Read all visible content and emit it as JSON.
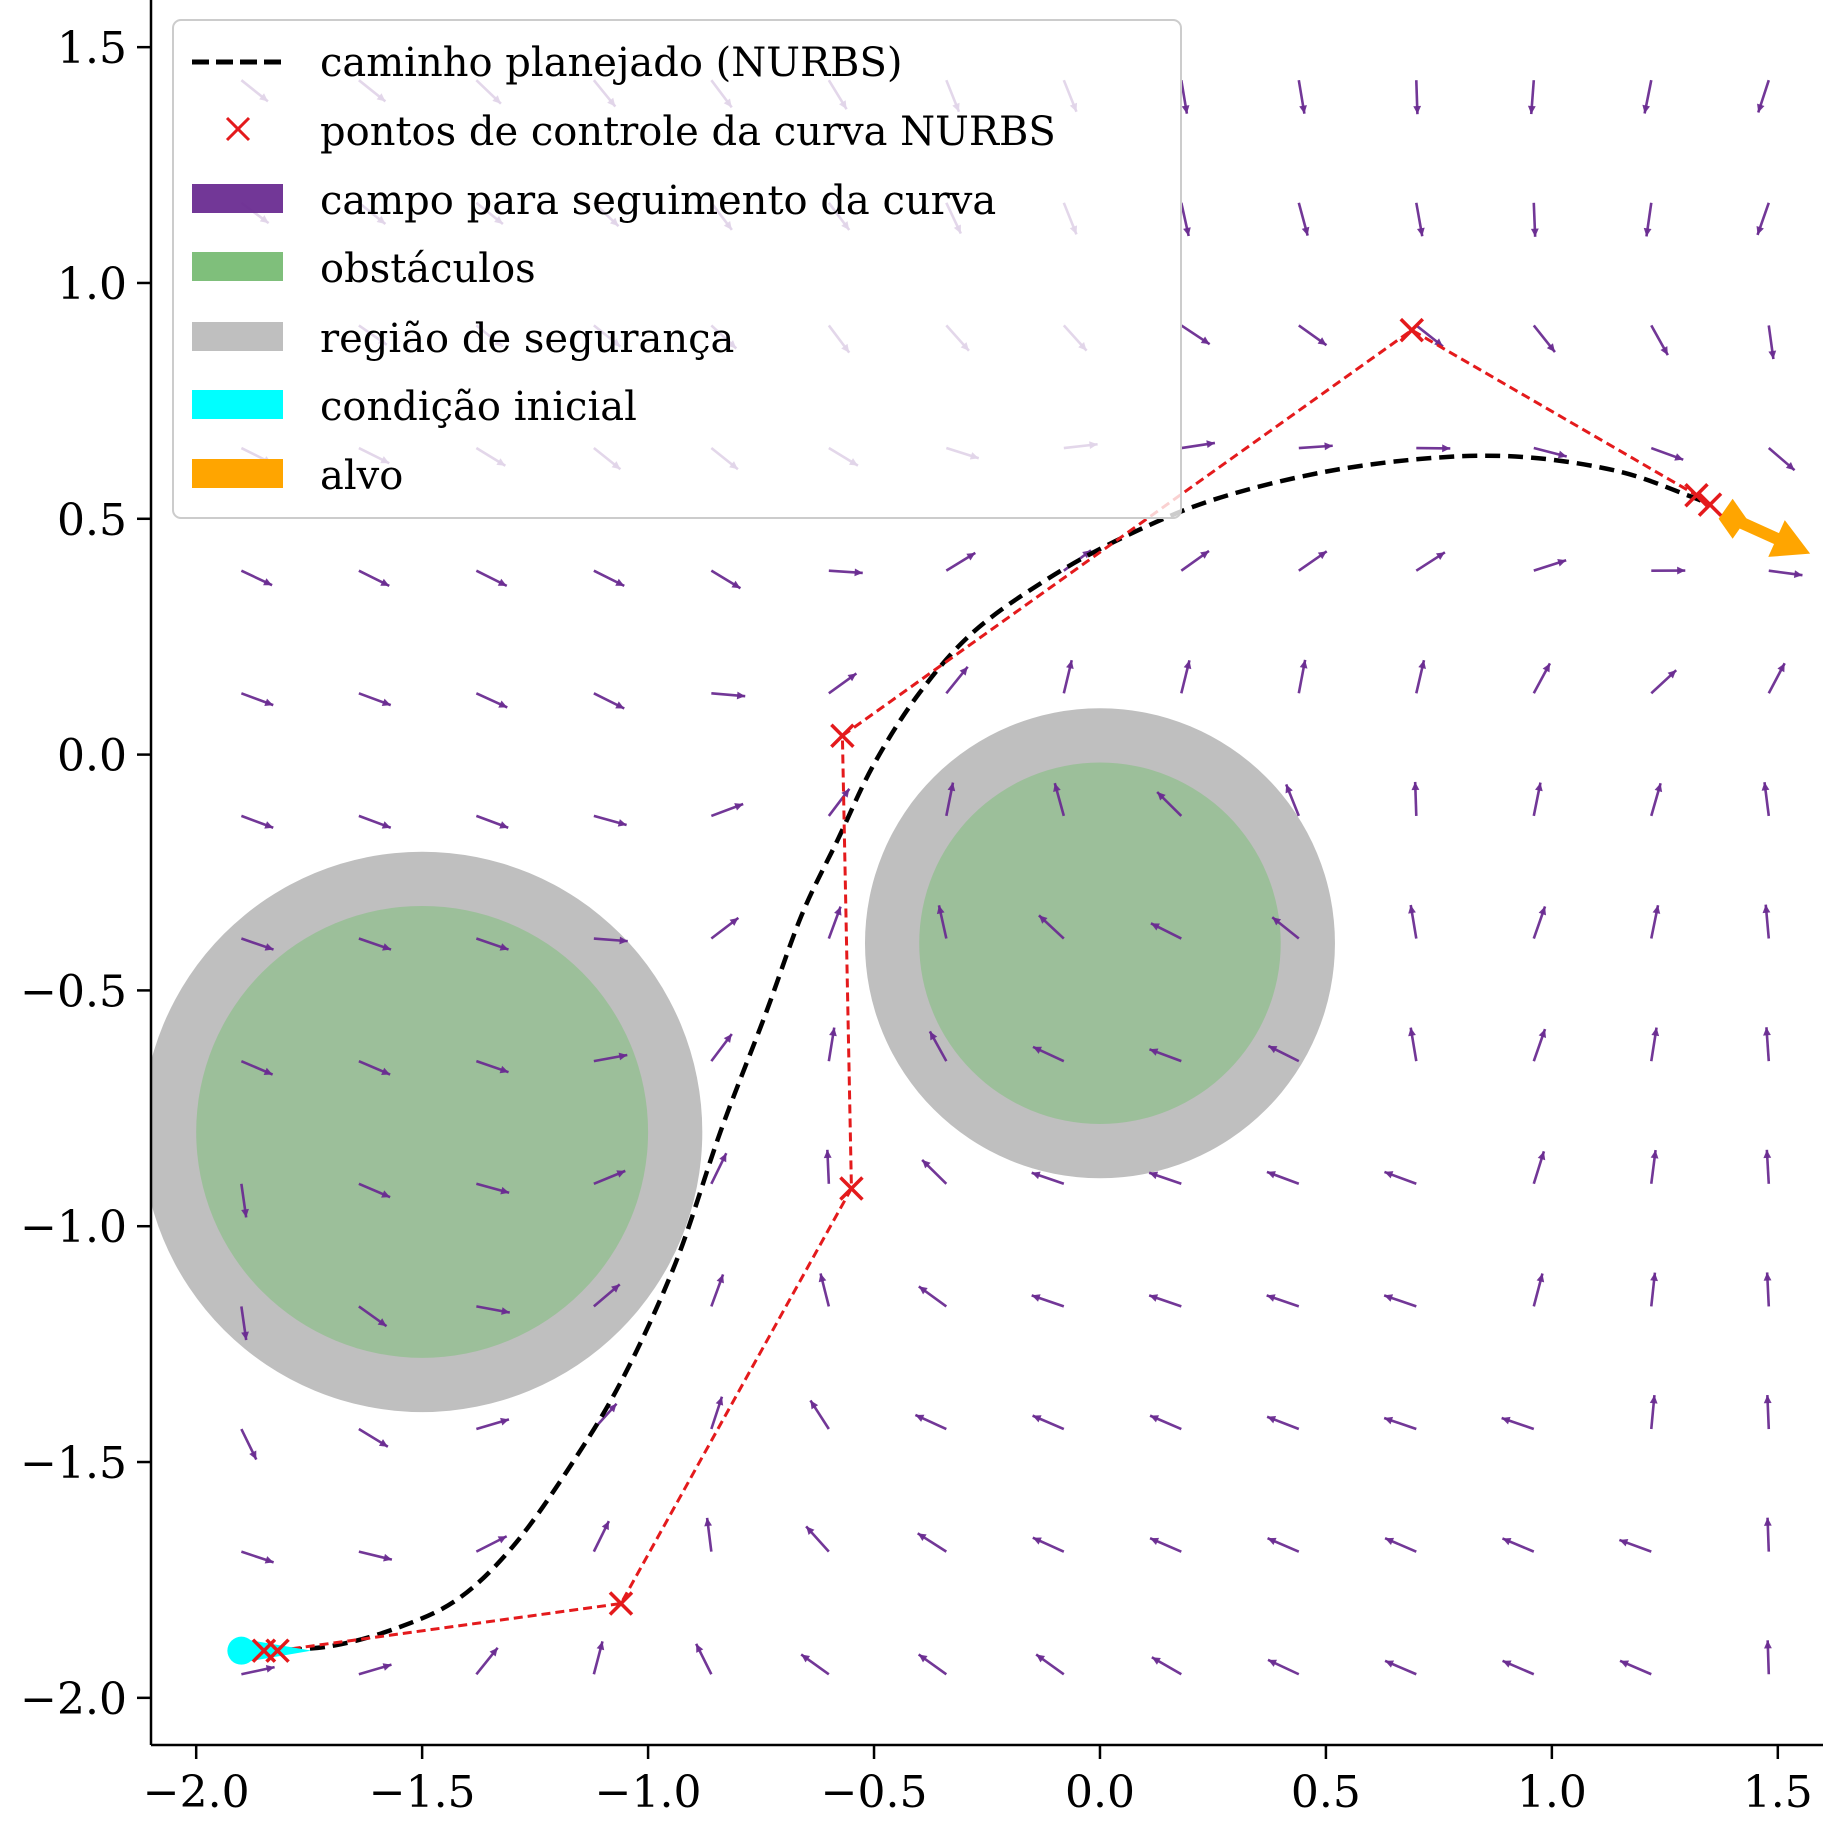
{
  "chart_data": {
    "type": "quiver",
    "title": "",
    "xlabel": "",
    "ylabel": "",
    "xlim": [
      -2.1,
      1.6
    ],
    "ylim": [
      -2.1,
      1.6
    ],
    "xticks": [
      -2.0,
      -1.5,
      -1.0,
      -0.5,
      0.0,
      0.5,
      1.0,
      1.5
    ],
    "yticks": [
      -2.0,
      -1.5,
      -1.0,
      -0.5,
      0.0,
      0.5,
      1.0,
      1.5
    ],
    "xtick_labels": [
      "−2.0",
      "−1.5",
      "−1.0",
      "−0.5",
      "0.0",
      "0.5",
      "1.0",
      "1.5"
    ],
    "ytick_labels": [
      "−2.0",
      "−1.5",
      "−1.0",
      "−0.5",
      "0.0",
      "0.5",
      "1.0",
      "1.5"
    ],
    "grid": false,
    "legend_position": "upper-left",
    "legend": [
      {
        "key": "path",
        "label": "caminho planejado (NURBS)"
      },
      {
        "key": "control",
        "label": "pontos de controle da curva NURBS"
      },
      {
        "key": "field",
        "label": "campo para seguimento da curva"
      },
      {
        "key": "obstacles",
        "label": "obstáculos"
      },
      {
        "key": "safety",
        "label": "região de segurança"
      },
      {
        "key": "initial",
        "label": "condição inicial"
      },
      {
        "key": "target",
        "label": "alvo"
      }
    ],
    "colors": {
      "path": "#000000",
      "control": "#e41a1c",
      "field": "#6a2c91",
      "obstacle": "#7fbf7b",
      "safety": "#bfbfbf",
      "initial": "#00ffff",
      "target": "#ffa500"
    },
    "control_points": [
      [
        -1.85,
        -1.9
      ],
      [
        -1.82,
        -1.9
      ],
      [
        -1.06,
        -1.8
      ],
      [
        -0.55,
        -0.92
      ],
      [
        -0.57,
        0.04
      ],
      [
        0.69,
        0.9
      ],
      [
        1.32,
        0.55
      ],
      [
        1.35,
        0.53
      ]
    ],
    "path_points": [
      [
        -1.85,
        -1.9
      ],
      [
        -1.7,
        -1.89
      ],
      [
        -1.55,
        -1.85
      ],
      [
        -1.42,
        -1.79
      ],
      [
        -1.3,
        -1.68
      ],
      [
        -1.18,
        -1.52
      ],
      [
        -1.06,
        -1.33
      ],
      [
        -0.94,
        -1.08
      ],
      [
        -0.84,
        -0.8
      ],
      [
        -0.74,
        -0.55
      ],
      [
        -0.66,
        -0.34
      ],
      [
        -0.58,
        -0.18
      ],
      [
        -0.5,
        -0.02
      ],
      [
        -0.4,
        0.13
      ],
      [
        -0.28,
        0.26
      ],
      [
        -0.12,
        0.37
      ],
      [
        0.05,
        0.46
      ],
      [
        0.25,
        0.54
      ],
      [
        0.5,
        0.6
      ],
      [
        0.75,
        0.63
      ],
      [
        0.95,
        0.63
      ],
      [
        1.15,
        0.6
      ],
      [
        1.3,
        0.55
      ],
      [
        1.35,
        0.53
      ]
    ],
    "obstacles": [
      {
        "center": [
          -1.5,
          -0.8
        ],
        "radius": 0.5,
        "safety_radius": 0.62
      },
      {
        "center": [
          0.0,
          -0.4
        ],
        "radius": 0.4,
        "safety_radius": 0.52
      }
    ],
    "initial_condition": {
      "position": [
        -1.9,
        -1.9
      ],
      "direction": [
        1,
        0
      ]
    },
    "target": {
      "position": [
        1.4,
        0.5
      ],
      "direction": [
        1,
        -0.45
      ]
    },
    "field": {
      "x": [
        -1.9,
        -1.64,
        -1.38,
        -1.12,
        -0.86,
        -0.6,
        -0.34,
        -0.08,
        0.18,
        0.44,
        0.7,
        0.96,
        1.22,
        1.48
      ],
      "y": [
        -1.95,
        -1.69,
        -1.43,
        -1.17,
        -0.91,
        -0.65,
        -0.39,
        -0.13,
        0.13,
        0.39,
        0.65,
        0.91,
        1.17,
        1.43
      ],
      "curve_x": [
        -1.85,
        -1.5,
        -1.2,
        -0.95,
        -0.8,
        -0.68,
        -0.55,
        -0.4,
        -0.2,
        0.0,
        0.3,
        0.6,
        0.9,
        1.2,
        1.4
      ],
      "curve_y": [
        -1.9,
        -1.85,
        -1.65,
        -1.3,
        -0.95,
        -0.6,
        -0.25,
        0.05,
        0.3,
        0.45,
        0.57,
        0.62,
        0.63,
        0.57,
        0.5
      ]
    }
  }
}
